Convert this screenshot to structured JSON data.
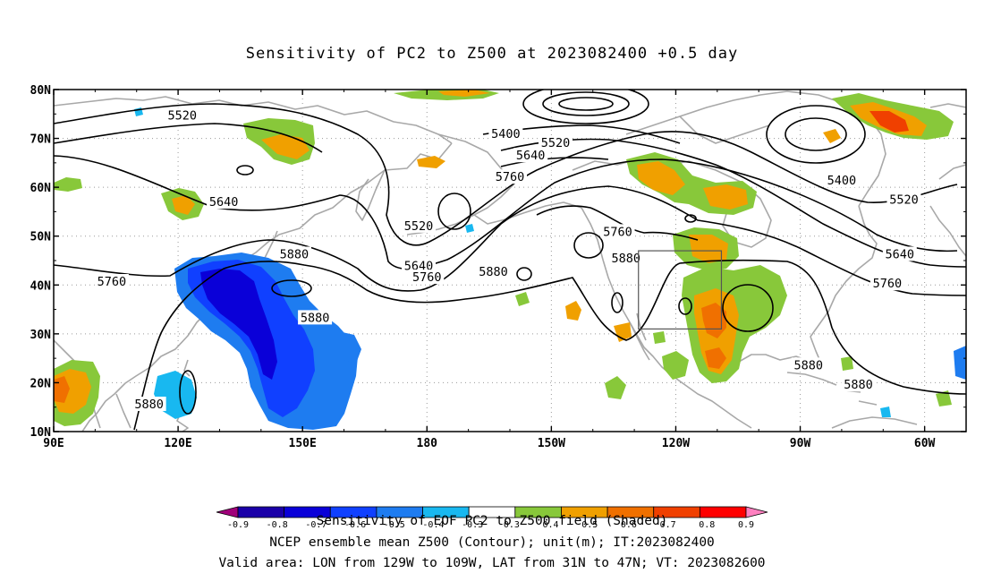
{
  "title": "Sensitivity of PC2 to Z500 at 2023082400 +0.5 day",
  "lat_axis": {
    "labels": [
      "80N",
      "70N",
      "60N",
      "50N",
      "40N",
      "30N",
      "20N",
      "10N"
    ],
    "values": [
      80,
      70,
      60,
      50,
      40,
      30,
      20,
      10
    ]
  },
  "lon_axis": {
    "labels": [
      "90E",
      "120E",
      "150E",
      "180",
      "150W",
      "120W",
      "90W",
      "60W"
    ],
    "values": [
      90,
      120,
      150,
      180,
      210,
      240,
      270,
      300
    ]
  },
  "domain": {
    "lon_min": 90,
    "lon_max": 310,
    "lat_min": 10,
    "lat_max": 80
  },
  "valid_box": {
    "lon_west": -129,
    "lon_east": -109,
    "lat_south": 31,
    "lat_north": 47
  },
  "colorbar": {
    "colors": [
      "#a0007a",
      "#1a00a8",
      "#0a00d8",
      "#1040ff",
      "#1e7cf0",
      "#18b8f0",
      "#ffffff",
      "#88c83a",
      "#f0a000",
      "#f07000",
      "#f04000",
      "#ff0000",
      "#ff80c0"
    ],
    "tick_labels": [
      "-0.9",
      "-0.8",
      "-0.7",
      "-0.6",
      "-0.5",
      "-0.4",
      "-0.3",
      "0.3",
      "0.4",
      "0.5",
      "0.6",
      "0.7",
      "0.8",
      "0.9"
    ]
  },
  "contour_labels": [
    {
      "text": "5520",
      "lon": 121,
      "lat": 74.6
    },
    {
      "text": "5400",
      "lon": 199,
      "lat": 70.8
    },
    {
      "text": "5520",
      "lon": 211,
      "lat": 69
    },
    {
      "text": "5640",
      "lon": 205,
      "lat": 66.4
    },
    {
      "text": "5760",
      "lon": 200,
      "lat": 62
    },
    {
      "text": "5400",
      "lon": 280,
      "lat": 61.3
    },
    {
      "text": "5520",
      "lon": 295,
      "lat": 57.4
    },
    {
      "text": "5640",
      "lon": 131,
      "lat": 56.9
    },
    {
      "text": "5520",
      "lon": 178,
      "lat": 52
    },
    {
      "text": "5760",
      "lon": 226,
      "lat": 50.8
    },
    {
      "text": "5880",
      "lon": 148,
      "lat": 46.2
    },
    {
      "text": "5880",
      "lon": 228,
      "lat": 45.4
    },
    {
      "text": "5640",
      "lon": 294,
      "lat": 46.2
    },
    {
      "text": "5640",
      "lon": 178,
      "lat": 43.8
    },
    {
      "text": "5760",
      "lon": 180,
      "lat": 41.5
    },
    {
      "text": "5880",
      "lon": 196,
      "lat": 42.6
    },
    {
      "text": "5760",
      "lon": 104,
      "lat": 40.6
    },
    {
      "text": "5760",
      "lon": 291,
      "lat": 40.2
    },
    {
      "text": "5880",
      "lon": 153,
      "lat": 33.2
    },
    {
      "text": "5880",
      "lon": 272,
      "lat": 23.5
    },
    {
      "text": "5880",
      "lon": 284,
      "lat": 19.5
    },
    {
      "text": "5880",
      "lon": 113,
      "lat": 15.5
    }
  ],
  "footer": {
    "line1": "Sensitivity of EOF PC2 to Z500 field (Shaded)",
    "line2": "NCEP ensemble mean Z500 (Contour); unit(m); IT:2023082400",
    "line3": "Valid area: LON from 129W to 109W, LAT from 31N to 47N; VT: 2023082600"
  }
}
